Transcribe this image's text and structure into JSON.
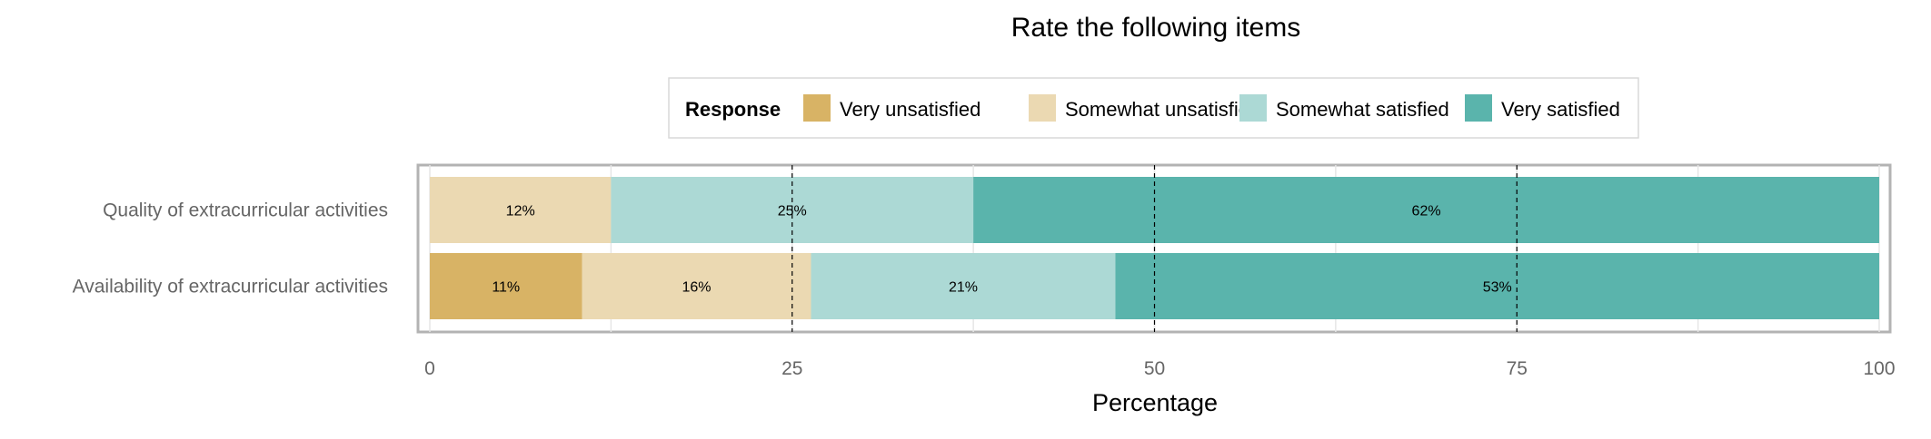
{
  "chart_data": {
    "type": "bar",
    "orientation": "horizontal",
    "stacked": true,
    "title": "Rate the following items",
    "xlabel": "Percentage",
    "xlim": [
      0,
      100
    ],
    "xticks": [
      0,
      25,
      50,
      75,
      100
    ],
    "legend": {
      "title": "Response",
      "position": "top",
      "entries": [
        "Very unsatisfied",
        "Somewhat unsatisfied",
        "Somewhat satisfied",
        "Very satisfied"
      ]
    },
    "categories": [
      "Quality of extracurricular activities",
      "Availability of extracurricular activities"
    ],
    "series": [
      {
        "name": "Very unsatisfied",
        "color": "#d8b365",
        "values": [
          0,
          10.5
        ],
        "labels": [
          "",
          "11%"
        ]
      },
      {
        "name": "Somewhat unsatisfied",
        "color": "#ebd9b2",
        "values": [
          12.5,
          15.8
        ],
        "labels": [
          "12%",
          "16%"
        ]
      },
      {
        "name": "Somewhat satisfied",
        "color": "#acd9d5",
        "values": [
          25.0,
          21.0
        ],
        "labels": [
          "25%",
          "21%"
        ]
      },
      {
        "name": "Very satisfied",
        "color": "#5ab4ac",
        "values": [
          62.5,
          52.7
        ],
        "labels": [
          "62%",
          "53%"
        ]
      }
    ],
    "reference_lines": [
      25,
      50,
      75
    ],
    "grid": true
  }
}
